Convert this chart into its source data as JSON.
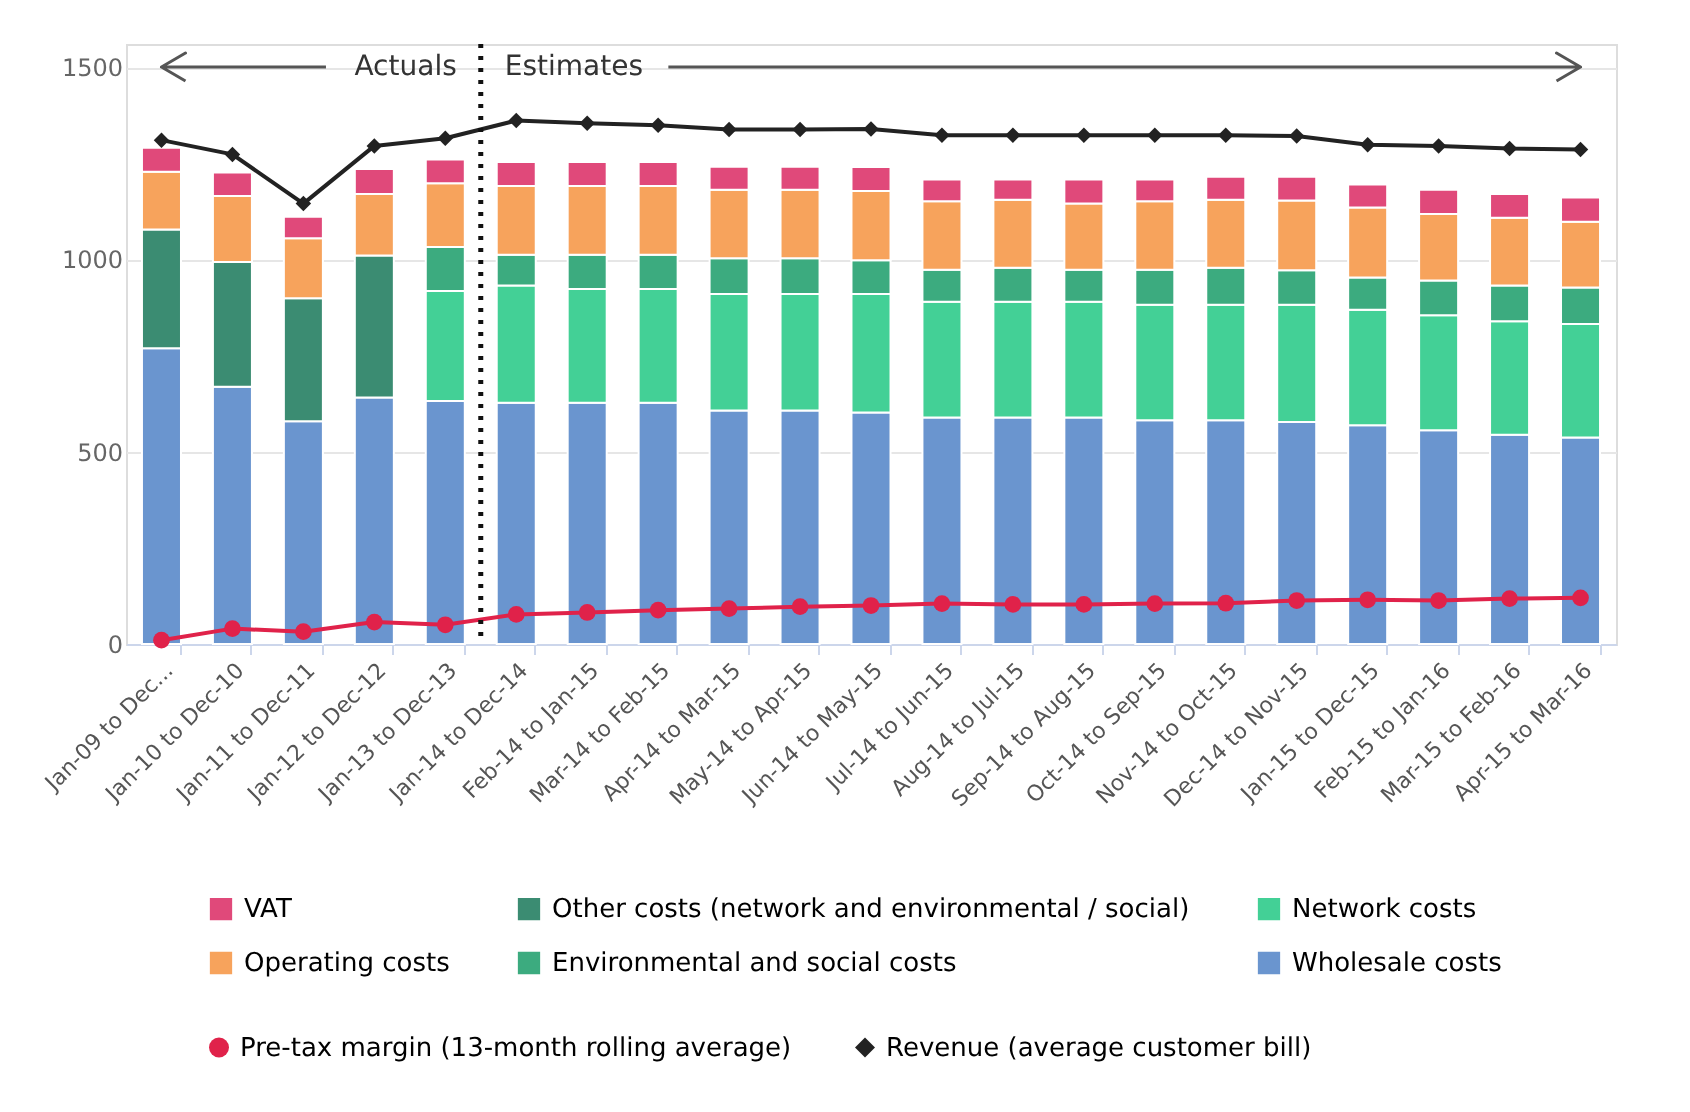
{
  "chart_data": {
    "type": "bar",
    "stacked": true,
    "categories": [
      "Jan-09 to Dec...",
      "Jan-10 to Dec-10",
      "Jan-11 to Dec-11",
      "Jan-12 to Dec-12",
      "Jan-13 to Dec-13",
      "Jan-14 to Dec-14",
      "Feb-14 to Jan-15",
      "Mar-14 to Feb-15",
      "Apr-14 to Mar-15",
      "May-14 to Apr-15",
      "Jun-14 to May-15",
      "Jul-14 to Jun-15",
      "Aug-14 to Jul-15",
      "Sep-14 to Aug-15",
      "Oct-14 to Sep-15",
      "Nov-14 to Oct-15",
      "Dec-14 to Nov-15",
      "Jan-15 to Dec-15",
      "Feb-15 to Jan-16",
      "Mar-15 to Feb-16",
      "Apr-15 to Mar-16"
    ],
    "series": [
      {
        "name": "Wholesale costs",
        "color": "#6a95cf",
        "values": [
          769,
          669,
          579,
          641,
          632,
          627,
          627,
          627,
          607,
          607,
          602,
          589,
          589,
          589,
          582,
          582,
          577,
          569,
          556,
          544,
          537
        ]
      },
      {
        "name": "Network costs",
        "color": "#43d096",
        "values": [
          null,
          null,
          null,
          null,
          286,
          305,
          296,
          296,
          303,
          303,
          308,
          301,
          301,
          301,
          300,
          300,
          305,
          300,
          299,
          295,
          295
        ]
      },
      {
        "name": "Environmental and social costs",
        "color": "#3cab7f",
        "values": [
          null,
          null,
          null,
          null,
          114,
          80,
          89,
          89,
          93,
          93,
          88,
          83,
          88,
          83,
          91,
          96,
          90,
          84,
          90,
          93,
          95
        ]
      },
      {
        "name": "Other costs (network and environmental / social)",
        "color": "#3b8c72",
        "values": [
          309,
          324,
          320,
          369,
          null,
          null,
          null,
          null,
          null,
          null,
          null,
          null,
          null,
          null,
          null,
          null,
          null,
          null,
          null,
          null,
          null
        ]
      },
      {
        "name": "Operating costs",
        "color": "#f7a35c",
        "values": [
          150,
          172,
          156,
          160,
          166,
          179,
          179,
          179,
          178,
          178,
          180,
          178,
          177,
          172,
          178,
          177,
          181,
          182,
          173,
          176,
          171
        ]
      },
      {
        "name": "VAT",
        "color": "#e0497a",
        "values": [
          62,
          61,
          56,
          65,
          62,
          62,
          62,
          62,
          60,
          60,
          62,
          57,
          53,
          63,
          57,
          60,
          62,
          60,
          63,
          62,
          63
        ]
      },
      {
        "name": "Pre-tax margin (13-month rolling average)",
        "type": "line",
        "marker": "circle",
        "color": "#e0224a",
        "values": [
          10,
          40,
          32,
          57,
          50,
          77,
          82,
          88,
          92,
          97,
          100,
          105,
          103,
          103,
          105,
          106,
          113,
          115,
          113,
          118,
          120
        ]
      },
      {
        "name": "Revenue (average customer bill)",
        "type": "line",
        "marker": "diamond",
        "color": "#222222",
        "values": [
          1310,
          1273,
          1145,
          1295,
          1315,
          1361,
          1354,
          1349,
          1338,
          1338,
          1339,
          1323,
          1323,
          1323,
          1323,
          1323,
          1321,
          1298,
          1295,
          1288,
          1286
        ]
      }
    ],
    "ylim": [
      0,
      1560
    ],
    "yticks": [
      0,
      500,
      1000,
      1500
    ],
    "grid": "y",
    "legend": "bottom",
    "ref_lines": [
      {
        "axis": "x",
        "value": "Jan-13 to Dec-13",
        "line_style": "dotted",
        "color": "#111111"
      }
    ],
    "annotations": [
      "Actuals",
      "Estimates"
    ]
  }
}
